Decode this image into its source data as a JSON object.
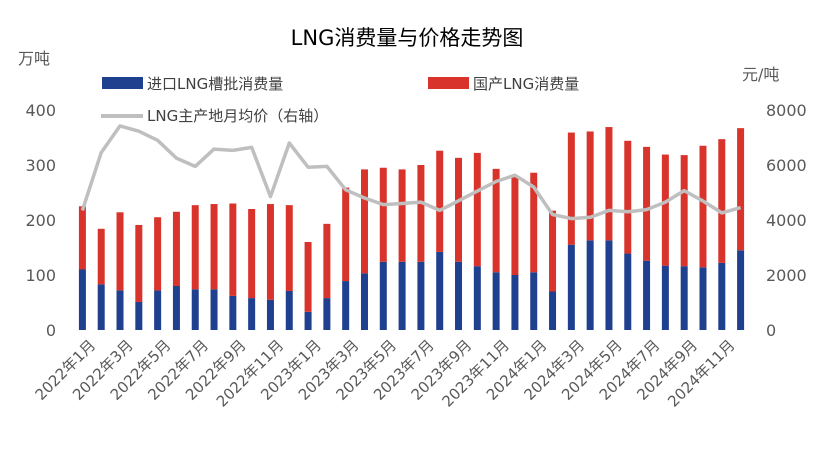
{
  "chart_data": {
    "type": "bar",
    "stacked": true,
    "title": "LNG消费量与价格走势图",
    "left_axis_unit": "万吨",
    "right_axis_unit": "元/吨",
    "ylim": [
      0,
      400
    ],
    "yticks": [
      "0",
      "100",
      "200",
      "300",
      "400"
    ],
    "y2lim": [
      0,
      8000
    ],
    "y2ticks": [
      "0",
      "2000",
      "4000",
      "6000",
      "8000"
    ],
    "grid": false,
    "legend_position": "top",
    "categories": [
      "2022年1月",
      "2022年2月",
      "2022年3月",
      "2022年4月",
      "2022年5月",
      "2022年6月",
      "2022年7月",
      "2022年8月",
      "2022年9月",
      "2022年10月",
      "2022年11月",
      "2022年12月",
      "2023年1月",
      "2023年2月",
      "2023年3月",
      "2023年4月",
      "2023年5月",
      "2023年6月",
      "2023年7月",
      "2023年8月",
      "2023年9月",
      "2023年10月",
      "2023年11月",
      "2023年12月",
      "2024年1月",
      "2024年2月",
      "2024年3月",
      "2024年4月",
      "2024年5月",
      "2024年6月",
      "2024年7月",
      "2024年8月",
      "2024年9月",
      "2024年10月",
      "2024年11月",
      "2024年12月"
    ],
    "xticks_shown": [
      "2022年1月",
      "2022年3月",
      "2022年5月",
      "2022年7月",
      "2022年9月",
      "2022年11月",
      "2023年1月",
      "2023年3月",
      "2023年5月",
      "2023年7月",
      "2023年9月",
      "2023年11月",
      "2024年1月",
      "2024年3月",
      "2024年5月",
      "2024年7月",
      "2024年9月",
      "2024年11月"
    ],
    "series": [
      {
        "name": "进口LNG槽批消费量",
        "type": "bar",
        "axis": "left",
        "color": "#1f3f8f",
        "values": [
          110,
          83,
          72,
          51,
          72,
          80,
          74,
          74,
          62,
          58,
          55,
          71,
          33,
          58,
          89,
          103,
          124,
          124,
          124,
          142,
          124,
          116,
          105,
          100,
          105,
          70,
          155,
          163,
          163,
          139,
          126,
          117,
          116,
          114,
          122,
          145
        ]
      },
      {
        "name": "国产LNG消费量",
        "type": "bar",
        "axis": "left",
        "color": "#d9342b",
        "values": [
          115,
          101,
          142,
          140,
          133,
          135,
          153,
          155,
          168,
          162,
          174,
          156,
          127,
          135,
          170,
          189,
          171,
          168,
          176,
          184,
          189,
          206,
          188,
          181,
          181,
          147,
          204,
          198,
          206,
          205,
          207,
          202,
          202,
          221,
          225,
          222
        ]
      },
      {
        "name": "LNG主产地月均价（右轴）",
        "type": "line",
        "axis": "right",
        "color": "#bfbfbf",
        "values": [
          4350,
          6450,
          7420,
          7230,
          6900,
          6250,
          5950,
          6580,
          6530,
          6640,
          4850,
          6800,
          5920,
          5950,
          5100,
          4800,
          4560,
          4600,
          4650,
          4350,
          4700,
          5050,
          5400,
          5630,
          5200,
          4200,
          4050,
          4100,
          4350,
          4300,
          4380,
          4650,
          5070,
          4690,
          4260,
          4450
        ]
      }
    ]
  }
}
